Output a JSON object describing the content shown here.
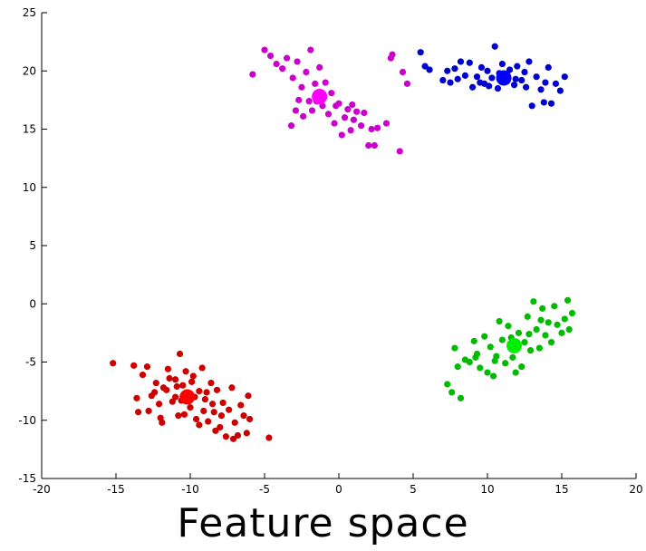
{
  "caption": "Feature space",
  "chart_data": {
    "type": "scatter",
    "title": "",
    "xlabel": "",
    "ylabel": "",
    "xlim": [
      -20,
      20
    ],
    "ylim": [
      -15,
      25
    ],
    "xticks": [
      -20,
      -15,
      -10,
      -5,
      0,
      5,
      10,
      15,
      20
    ],
    "yticks": [
      -15,
      -10,
      -5,
      0,
      5,
      10,
      15,
      20,
      25
    ],
    "grid": false,
    "legend": "none",
    "series": [
      {
        "color": "#cc0000",
        "centroid_color": "#ff0000",
        "centroid": [
          -10.2,
          -8.0
        ],
        "points": [
          [
            -15.2,
            -5.1
          ],
          [
            -13.8,
            -5.3
          ],
          [
            -13.5,
            -9.3
          ],
          [
            -13.2,
            -6.1
          ],
          [
            -12.9,
            -5.4
          ],
          [
            -12.6,
            -7.9
          ],
          [
            -12.3,
            -6.8
          ],
          [
            -12.0,
            -9.8
          ],
          [
            -11.8,
            -7.2
          ],
          [
            -11.5,
            -5.6
          ],
          [
            -11.2,
            -8.4
          ],
          [
            -11.0,
            -6.5
          ],
          [
            -10.8,
            -9.6
          ],
          [
            -10.7,
            -4.3
          ],
          [
            -10.5,
            -7.0
          ],
          [
            -10.3,
            -5.8
          ],
          [
            -10.0,
            -8.9
          ],
          [
            -9.8,
            -6.2
          ],
          [
            -9.6,
            -9.9
          ],
          [
            -9.4,
            -7.5
          ],
          [
            -9.2,
            -5.5
          ],
          [
            -9.0,
            -8.2
          ],
          [
            -8.8,
            -10.1
          ],
          [
            -8.6,
            -6.8
          ],
          [
            -8.4,
            -9.3
          ],
          [
            -8.2,
            -7.4
          ],
          [
            -8.0,
            -10.6
          ],
          [
            -7.8,
            -8.5
          ],
          [
            -7.6,
            -11.4
          ],
          [
            -7.4,
            -9.1
          ],
          [
            -7.2,
            -7.2
          ],
          [
            -7.0,
            -10.2
          ],
          [
            -6.8,
            -11.3
          ],
          [
            -6.6,
            -8.7
          ],
          [
            -6.4,
            -9.6
          ],
          [
            -6.2,
            -11.1
          ],
          [
            -6.0,
            -9.9
          ],
          [
            -11.6,
            -7.4
          ],
          [
            -12.1,
            -8.6
          ],
          [
            -11.0,
            -8.0
          ],
          [
            -10.6,
            -8.3
          ],
          [
            -9.7,
            -8.0
          ],
          [
            -9.1,
            -9.2
          ],
          [
            -8.5,
            -8.6
          ],
          [
            -10.9,
            -7.1
          ],
          [
            -11.4,
            -6.4
          ],
          [
            -12.4,
            -7.6
          ],
          [
            -9.9,
            -6.7
          ],
          [
            -8.9,
            -7.6
          ],
          [
            -7.9,
            -9.6
          ],
          [
            -7.1,
            -11.6
          ],
          [
            -4.7,
            -11.5
          ],
          [
            -6.1,
            -7.9
          ],
          [
            -13.6,
            -8.1
          ],
          [
            -12.8,
            -9.2
          ],
          [
            -11.9,
            -10.2
          ],
          [
            -10.4,
            -9.5
          ],
          [
            -9.4,
            -10.4
          ],
          [
            -8.3,
            -10.9
          ]
        ]
      },
      {
        "color": "#cc00cc",
        "centroid_color": "#ff00ff",
        "centroid": [
          -1.3,
          17.8
        ],
        "points": [
          [
            -5.0,
            21.8
          ],
          [
            -5.8,
            19.7
          ],
          [
            -4.6,
            21.3
          ],
          [
            -4.2,
            20.6
          ],
          [
            -3.8,
            20.2
          ],
          [
            -3.5,
            21.1
          ],
          [
            -3.1,
            19.4
          ],
          [
            -2.8,
            20.8
          ],
          [
            -2.5,
            18.6
          ],
          [
            -2.2,
            19.9
          ],
          [
            -2.0,
            17.4
          ],
          [
            -1.8,
            16.6
          ],
          [
            -1.6,
            18.9
          ],
          [
            -1.9,
            21.8
          ],
          [
            -1.3,
            20.3
          ],
          [
            -1.1,
            17.0
          ],
          [
            -0.9,
            19.0
          ],
          [
            -0.7,
            16.3
          ],
          [
            -0.5,
            18.1
          ],
          [
            -0.3,
            15.5
          ],
          [
            0.0,
            17.2
          ],
          [
            0.2,
            14.5
          ],
          [
            0.4,
            16.0
          ],
          [
            0.6,
            16.7
          ],
          [
            0.8,
            14.9
          ],
          [
            1.0,
            15.8
          ],
          [
            1.2,
            16.5
          ],
          [
            1.5,
            15.3
          ],
          [
            1.7,
            16.4
          ],
          [
            2.0,
            13.6
          ],
          [
            2.2,
            15.0
          ],
          [
            2.4,
            13.6
          ],
          [
            2.6,
            15.1
          ],
          [
            3.2,
            15.5
          ],
          [
            3.5,
            21.1
          ],
          [
            4.1,
            13.1
          ],
          [
            4.3,
            19.9
          ],
          [
            4.6,
            18.9
          ],
          [
            3.6,
            21.4
          ],
          [
            -2.9,
            16.6
          ],
          [
            -3.2,
            15.3
          ],
          [
            -2.4,
            16.1
          ],
          [
            -1.5,
            17.4
          ],
          [
            -0.2,
            17.0
          ],
          [
            0.9,
            17.1
          ],
          [
            -2.7,
            17.5
          ]
        ]
      },
      {
        "color": "#0000cc",
        "centroid_color": "#0000ff",
        "centroid": [
          11.1,
          19.4
        ],
        "points": [
          [
            5.5,
            21.6
          ],
          [
            5.8,
            20.4
          ],
          [
            6.1,
            20.1
          ],
          [
            7.0,
            19.2
          ],
          [
            7.3,
            20.0
          ],
          [
            7.5,
            19.0
          ],
          [
            7.8,
            20.2
          ],
          [
            8.2,
            20.8
          ],
          [
            8.5,
            19.6
          ],
          [
            8.8,
            20.7
          ],
          [
            9.0,
            18.6
          ],
          [
            9.3,
            19.5
          ],
          [
            9.6,
            20.3
          ],
          [
            9.8,
            18.9
          ],
          [
            10.0,
            20.0
          ],
          [
            10.3,
            19.4
          ],
          [
            10.5,
            22.1
          ],
          [
            10.7,
            18.5
          ],
          [
            11.0,
            20.6
          ],
          [
            11.3,
            19.1
          ],
          [
            11.5,
            20.1
          ],
          [
            11.8,
            18.8
          ],
          [
            12.0,
            20.4
          ],
          [
            12.3,
            19.2
          ],
          [
            12.6,
            18.6
          ],
          [
            12.8,
            20.8
          ],
          [
            13.0,
            17.0
          ],
          [
            13.3,
            19.5
          ],
          [
            13.6,
            18.4
          ],
          [
            13.8,
            17.3
          ],
          [
            14.1,
            20.3
          ],
          [
            14.3,
            17.2
          ],
          [
            14.6,
            18.9
          ],
          [
            14.9,
            18.3
          ],
          [
            15.2,
            19.5
          ],
          [
            8.0,
            19.3
          ],
          [
            9.5,
            19.0
          ],
          [
            10.8,
            19.8
          ],
          [
            12.5,
            19.9
          ],
          [
            13.9,
            19.0
          ],
          [
            11.9,
            19.3
          ],
          [
            10.1,
            18.7
          ]
        ]
      },
      {
        "color": "#00bb00",
        "centroid_color": "#00ee00",
        "centroid": [
          11.8,
          -3.6
        ],
        "points": [
          [
            7.3,
            -6.9
          ],
          [
            7.6,
            -7.6
          ],
          [
            7.8,
            -3.8
          ],
          [
            8.0,
            -5.4
          ],
          [
            8.2,
            -8.1
          ],
          [
            8.5,
            -4.8
          ],
          [
            8.8,
            -5.0
          ],
          [
            9.1,
            -3.2
          ],
          [
            9.3,
            -4.3
          ],
          [
            9.5,
            -5.5
          ],
          [
            9.8,
            -2.8
          ],
          [
            10.0,
            -5.9
          ],
          [
            10.2,
            -3.7
          ],
          [
            10.4,
            -6.2
          ],
          [
            10.6,
            -4.5
          ],
          [
            10.8,
            -1.5
          ],
          [
            11.0,
            -3.1
          ],
          [
            11.2,
            -5.1
          ],
          [
            11.4,
            -1.9
          ],
          [
            11.7,
            -4.6
          ],
          [
            11.9,
            -5.9
          ],
          [
            12.1,
            -2.5
          ],
          [
            12.3,
            -5.4
          ],
          [
            12.5,
            -3.3
          ],
          [
            12.7,
            -1.1
          ],
          [
            12.9,
            -4.0
          ],
          [
            13.1,
            0.2
          ],
          [
            13.3,
            -2.2
          ],
          [
            13.5,
            -3.8
          ],
          [
            13.7,
            -0.4
          ],
          [
            13.9,
            -2.7
          ],
          [
            14.1,
            -1.6
          ],
          [
            14.3,
            -3.3
          ],
          [
            14.5,
            -0.2
          ],
          [
            14.7,
            -1.8
          ],
          [
            15.0,
            -2.5
          ],
          [
            15.2,
            -1.3
          ],
          [
            15.4,
            0.3
          ],
          [
            15.7,
            -0.8
          ],
          [
            15.5,
            -2.2
          ],
          [
            9.2,
            -4.6
          ],
          [
            10.5,
            -4.9
          ],
          [
            11.6,
            -2.9
          ],
          [
            12.8,
            -2.6
          ],
          [
            13.6,
            -1.4
          ]
        ]
      }
    ]
  }
}
